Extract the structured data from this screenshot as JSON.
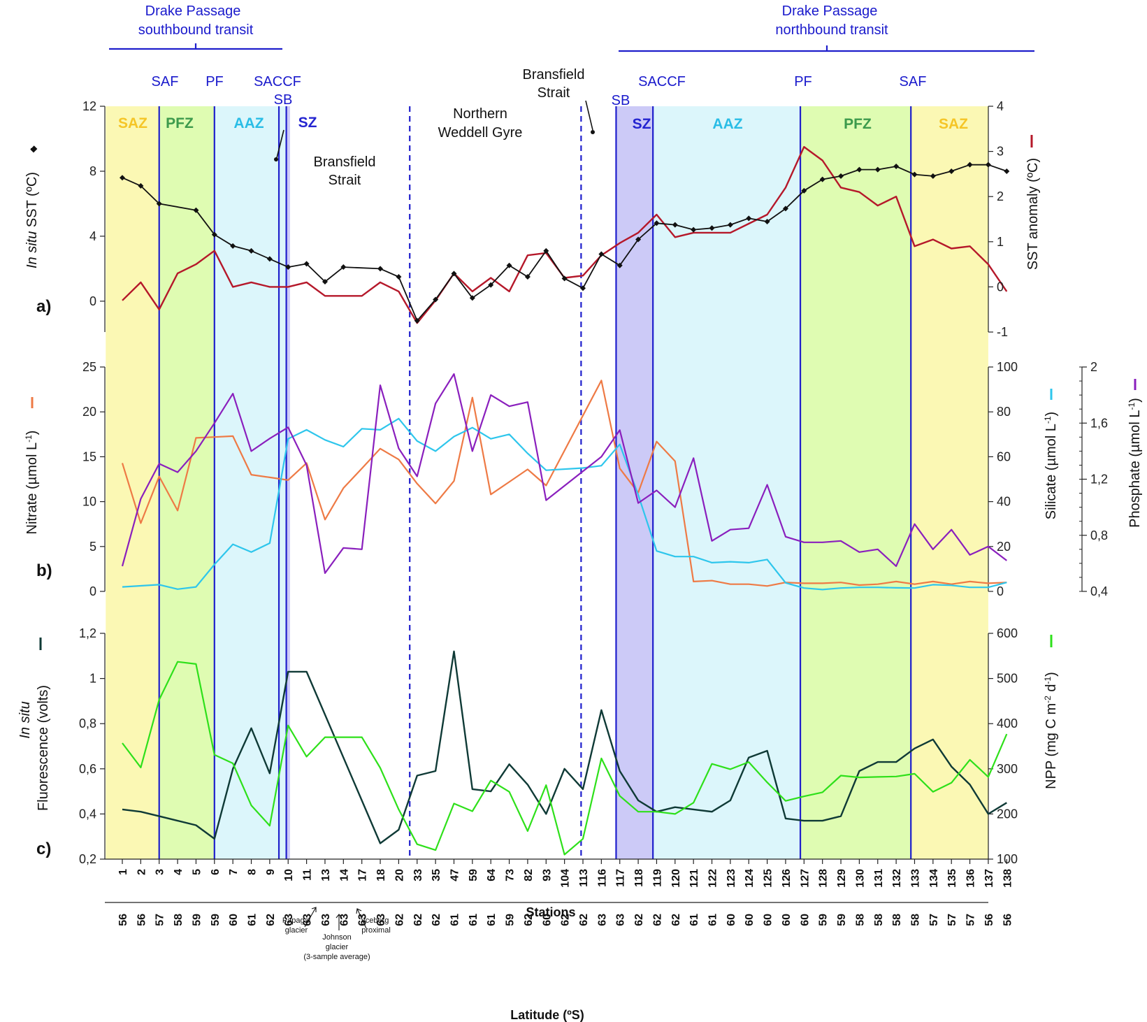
{
  "colors": {
    "SAZ": "#fbf8b4",
    "PFZ": "#dffcb2",
    "AAZ": "#dcf6fb",
    "SZ": "#cccaf7",
    "front_line": "#1f1fcc",
    "sst": "#111111",
    "anomaly": "#b5182a",
    "nitrate": "#ee7a45",
    "silicate": "#2ec6ec",
    "phosphate": "#8a1fbd",
    "fluorescence": "#0f3a36",
    "npp": "#2ee01a",
    "label_SAZ": "#f5c526",
    "label_PFZ": "#3d9a4c",
    "label_AAZ": "#29bde6",
    "label_SZ": "#2424d0"
  },
  "header": {
    "southbound": [
      "Drake Passage",
      "southbound transit"
    ],
    "northbound": [
      "Drake Passage",
      "northbound transit"
    ]
  },
  "fronts": {
    "south": [
      {
        "label": "SAF",
        "after_index": 2
      },
      {
        "label": "PF",
        "after_index": 5
      },
      {
        "label": "SACCF",
        "after_index": 8.5
      },
      {
        "label": "SB",
        "after_index": 8.9
      }
    ],
    "north": [
      {
        "label": "SB",
        "after_index": 26.8
      },
      {
        "label": "SACCF",
        "after_index": 28.8
      },
      {
        "label": "PF",
        "after_index": 36.8
      },
      {
        "label": "SAF",
        "after_index": 42.8
      }
    ],
    "dashed": [
      15.6,
      24.9
    ]
  },
  "zones": [
    {
      "from": -0.9,
      "to": 2.0,
      "type": "SAZ",
      "label": "SAZ"
    },
    {
      "from": 2.0,
      "to": 5.0,
      "type": "PFZ",
      "label": "PFZ"
    },
    {
      "from": 5.0,
      "to": 8.9,
      "type": "AAZ",
      "label": "AAZ"
    },
    {
      "from": 8.9,
      "to": 9.1,
      "type": "SZ",
      "label": "SZ"
    },
    {
      "from": 26.8,
      "to": 28.8,
      "type": "SZ",
      "label": "SZ"
    },
    {
      "from": 28.8,
      "to": 36.8,
      "type": "AAZ",
      "label": "AAZ"
    },
    {
      "from": 36.8,
      "to": 42.8,
      "type": "PFZ",
      "label": "PFZ"
    },
    {
      "from": 42.8,
      "to": 47.0,
      "type": "SAZ",
      "label": "SAZ"
    }
  ],
  "annotations": {
    "bransfield_left": [
      "Bransfield",
      "Strait"
    ],
    "weddell": [
      "Northern",
      "Weddell Gyre"
    ],
    "bransfield_right": [
      "Bransfield",
      "Strait"
    ],
    "papagal": [
      "Papagal",
      "glacier"
    ],
    "johnson": [
      "Johnson",
      "glacier",
      "(3-sample average)"
    ],
    "iceberg": [
      "Iceberg",
      "proximal"
    ]
  },
  "chart_data": [
    {
      "panel": "a)",
      "type": "line",
      "categories": [
        "1",
        "2",
        "3",
        "4",
        "5",
        "6",
        "7",
        "8",
        "9",
        "10",
        "11",
        "13",
        "14",
        "17",
        "18",
        "20",
        "33",
        "35",
        "47",
        "59",
        "64",
        "73",
        "82",
        "93",
        "104",
        "113",
        "116",
        "117",
        "118",
        "119",
        "120",
        "121",
        "122",
        "123",
        "124",
        "125",
        "126",
        "127",
        "128",
        "129",
        "130",
        "131",
        "132",
        "133",
        "134",
        "135",
        "136",
        "137",
        "138"
      ],
      "ylabel_left_italic": "In situ",
      "ylabel_left": " SST (ºC)",
      "ylabel_right": "SST anomaly (ºC)",
      "ylim_left": [
        -1.5,
        12
      ],
      "yticks_left": [
        "0",
        "4",
        "8",
        "12"
      ],
      "ylim_right": [
        -1,
        4
      ],
      "yticks_right": [
        "-1",
        "0",
        "1",
        "2",
        "3",
        "4"
      ],
      "series": [
        {
          "key": "sst",
          "axis": "left",
          "marker": "diamond",
          "values": [
            7.6,
            7.1,
            6.0,
            null,
            5.6,
            4.1,
            3.4,
            3.1,
            2.6,
            2.1,
            2.3,
            1.2,
            2.1,
            null,
            2.0,
            1.5,
            -1.2,
            0.1,
            1.7,
            0.2,
            1.0,
            2.2,
            1.5,
            3.1,
            1.4,
            0.8,
            2.9,
            2.2,
            3.8,
            4.8,
            4.7,
            4.4,
            4.5,
            4.7,
            5.1,
            4.9,
            5.7,
            6.8,
            7.5,
            7.7,
            8.1,
            8.1,
            8.3,
            7.8,
            7.7,
            8.0,
            8.4,
            8.4,
            8.0
          ]
        },
        {
          "key": "anomaly",
          "axis": "right",
          "values": [
            -0.3,
            0.1,
            -0.5,
            0.3,
            0.5,
            0.8,
            0.0,
            0.1,
            0.0,
            0.0,
            0.1,
            -0.2,
            -0.2,
            -0.2,
            0.1,
            -0.1,
            -0.8,
            -0.3,
            0.3,
            -0.1,
            0.2,
            -0.1,
            0.7,
            0.75,
            0.2,
            0.25,
            0.7,
            0.97,
            1.2,
            1.6,
            1.1,
            1.2,
            1.2,
            1.2,
            1.4,
            1.6,
            2.2,
            3.1,
            2.8,
            2.2,
            2.1,
            1.8,
            2.0,
            0.9,
            1.05,
            0.85,
            0.9,
            0.5,
            -0.1
          ]
        }
      ]
    },
    {
      "panel": "b)",
      "type": "line",
      "ylabel_left": "Nitrate (µmol L-1)",
      "ylabel_mid": "Silicate (µmol L-1)",
      "ylabel_right": "Phosphate (µmol L-1)",
      "ylim_left": [
        0,
        25
      ],
      "yticks_left": [
        "0",
        "5",
        "10",
        "15",
        "20",
        "25"
      ],
      "ylim_mid": [
        0,
        100
      ],
      "yticks_mid": [
        "0",
        "20",
        "40",
        "60",
        "80",
        "100"
      ],
      "ylim_right": [
        0.4,
        2
      ],
      "yticks_right": [
        "0,4",
        "0,8",
        "1,2",
        "1,6",
        "2"
      ],
      "series": [
        {
          "key": "nitrate",
          "axis": "left",
          "values": [
            14.3,
            7.6,
            12.8,
            9.0,
            17.1,
            17.2,
            17.3,
            13.0,
            12.7,
            12.4,
            14.3,
            8.0,
            11.5,
            13.7,
            15.9,
            14.7,
            12.0,
            9.8,
            12.3,
            21.6,
            10.8,
            12.2,
            13.6,
            11.8,
            null,
            null,
            23.5,
            13.7,
            11.0,
            16.7,
            14.5,
            1.1,
            1.2,
            0.8,
            0.8,
            0.6,
            1.0,
            0.9,
            0.9,
            1.0,
            0.7,
            0.8,
            1.1,
            0.8,
            1.1,
            0.8,
            1.1,
            0.9,
            1.0
          ]
        },
        {
          "key": "silicate",
          "axis": "mid",
          "values": [
            2,
            2.5,
            3,
            1,
            2,
            12,
            21,
            17.5,
            21.5,
            68,
            72,
            67.5,
            64.5,
            72.5,
            72,
            77,
            67,
            62.5,
            69,
            73,
            68,
            70,
            61.5,
            54,
            null,
            55,
            56,
            65.5,
            43,
            18,
            15.5,
            15.5,
            12.8,
            13.2,
            12.8,
            14.2,
            3.8,
            1.5,
            0.8,
            1.5,
            1.8,
            1.8,
            1.6,
            1.5,
            3,
            2.7,
            1.8,
            1.8,
            4
          ]
        },
        {
          "key": "phosphate",
          "axis": "right",
          "values": [
            0.58,
            1.06,
            1.31,
            1.25,
            1.4,
            1.6,
            1.81,
            1.4,
            1.49,
            1.57,
            1.3,
            0.53,
            0.71,
            0.7,
            1.87,
            1.42,
            1.22,
            1.74,
            1.95,
            1.4,
            1.8,
            1.72,
            1.75,
            1.05,
            null,
            null,
            1.36,
            1.55,
            1.03,
            1.12,
            1.0,
            1.35,
            0.76,
            0.84,
            0.85,
            1.16,
            0.79,
            0.75,
            0.75,
            0.76,
            0.68,
            0.7,
            0.58,
            0.88,
            0.7,
            0.84,
            0.66,
            0.72,
            0.62
          ]
        }
      ]
    },
    {
      "panel": "c)",
      "type": "line",
      "ylabel_left_italic": "In situ",
      "ylabel_left": "Fluorescence (volts)",
      "ylabel_right": "NPP (mg C m-2 d-1)",
      "ylim_left": [
        0.2,
        1.2
      ],
      "yticks_left": [
        "0,2",
        "0,4",
        "0,6",
        "0,8",
        "1",
        "1,2"
      ],
      "ylim_right": [
        100,
        600
      ],
      "yticks_right": [
        "100",
        "200",
        "300",
        "400",
        "500",
        "600"
      ],
      "series": [
        {
          "key": "fluorescence",
          "axis": "left",
          "values": [
            0.42,
            0.41,
            0.39,
            0.37,
            0.35,
            0.29,
            0.6,
            0.78,
            0.58,
            1.03,
            1.03,
            null,
            null,
            null,
            0.27,
            0.33,
            0.57,
            0.59,
            1.12,
            0.51,
            0.5,
            0.62,
            0.53,
            0.4,
            0.6,
            0.51,
            0.86,
            0.59,
            0.46,
            0.41,
            0.43,
            0.42,
            0.41,
            0.46,
            0.65,
            0.68,
            0.38,
            0.37,
            0.37,
            0.39,
            0.59,
            0.63,
            0.63,
            0.69,
            0.73,
            0.61,
            0.53,
            0.4,
            0.45
          ]
        },
        {
          "key": "npp",
          "axis": "right",
          "values": [
            357,
            303,
            453,
            537,
            532,
            331,
            312,
            219,
            174,
            396,
            327,
            370,
            370,
            370,
            302,
            210,
            133,
            120,
            223,
            206,
            274,
            249,
            162,
            264,
            110,
            145,
            323,
            240,
            205,
            205,
            200,
            225,
            311,
            299,
            315,
            270,
            229,
            239,
            248,
            285,
            281,
            282,
            283,
            289,
            249,
            269,
            320,
            282,
            377
          ]
        }
      ]
    }
  ],
  "x_axis": {
    "label": "Stations",
    "latitudes": [
      "56",
      "56",
      "57",
      "58",
      "59",
      "59",
      "60",
      "61",
      "62",
      "63",
      "63",
      "63",
      "63",
      "63",
      "63",
      "62",
      "62",
      "62",
      "61",
      "61",
      "61",
      "59",
      "62",
      "60",
      "62",
      "62",
      "63",
      "63",
      "62",
      "62",
      "62",
      "61",
      "61",
      "60",
      "60",
      "60",
      "60",
      "60",
      "59",
      "59",
      "58",
      "58",
      "58",
      "58",
      "57",
      "57",
      "57",
      "56",
      "56"
    ],
    "latitude_label": "Latitude (ºS)"
  }
}
